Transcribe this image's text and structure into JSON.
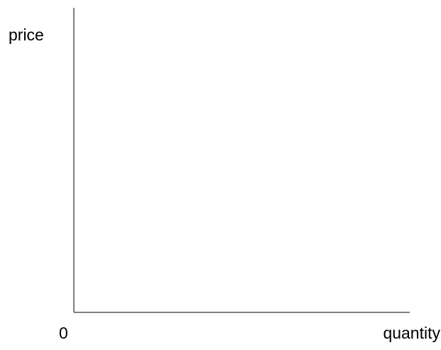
{
  "chart_data": {
    "type": "line",
    "title": "",
    "xlabel": "quantity",
    "ylabel": "price",
    "origin_label": "0",
    "series": [],
    "grid": false,
    "legend": "none"
  },
  "colors": {
    "axis": "#000000",
    "background": "#ffffff"
  }
}
